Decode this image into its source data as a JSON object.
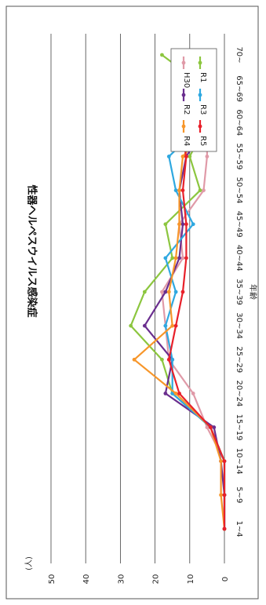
{
  "chart_data": {
    "type": "line",
    "title": "性器ヘルペスウイルス感染症",
    "xlabel": "年齢",
    "ylabel": "(人)",
    "ylim": [
      0,
      50
    ],
    "yticks": [
      0,
      10,
      20,
      30,
      40,
      50
    ],
    "grid": true,
    "legend_position": "top-right",
    "orientation": "rotated-90-clockwise",
    "categories": [
      "1~4",
      "5~9",
      "10~14",
      "15~19",
      "20~24",
      "25~29",
      "30~34",
      "35~39",
      "40~44",
      "45~49",
      "50~54",
      "55~59",
      "60~64",
      "65~69",
      "70~"
    ],
    "series": [
      {
        "name": "H30",
        "color": "#e09aa8",
        "values": [
          0,
          0,
          0,
          5,
          9,
          16,
          17,
          18,
          12,
          13,
          6,
          5,
          5,
          4,
          6
        ]
      },
      {
        "name": "R1",
        "color": "#8cc63f",
        "values": [
          0,
          0,
          0,
          4,
          15,
          18,
          27,
          23,
          15,
          17,
          7,
          10,
          5,
          5,
          18
        ]
      },
      {
        "name": "R2",
        "color": "#6a2e8e",
        "values": [
          0,
          0,
          1,
          3,
          17,
          15,
          23,
          17,
          13,
          12,
          13,
          11,
          5,
          5,
          11
        ]
      },
      {
        "name": "R3",
        "color": "#2fa8e0",
        "values": [
          0,
          0,
          0,
          4,
          15,
          15,
          17,
          14,
          17,
          9,
          14,
          16,
          6,
          5,
          9
        ]
      },
      {
        "name": "R4",
        "color": "#f7962a",
        "values": [
          0,
          1,
          1,
          4,
          14,
          26,
          15,
          16,
          14,
          13,
          13,
          12,
          4,
          3,
          6
        ]
      },
      {
        "name": "R5",
        "color": "#e8202a",
        "values": [
          0,
          0,
          0,
          4,
          13,
          16,
          14,
          12,
          11,
          11,
          12,
          11,
          13,
          3,
          5
        ]
      }
    ]
  }
}
